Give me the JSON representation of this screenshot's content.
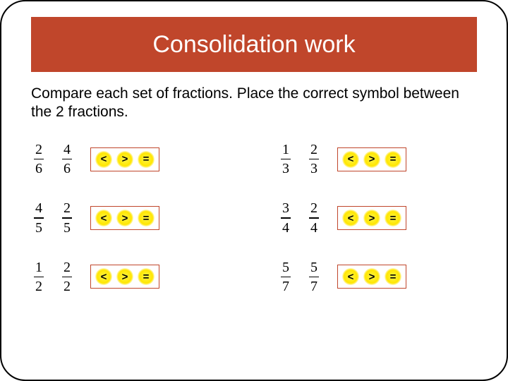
{
  "title": "Consolidation work",
  "instruction": "Compare each set of fractions. Place the correct symbol between the 2 fractions.",
  "colors": {
    "title_bg": "#c0462b",
    "title_text": "#ffffff",
    "border": "#000000",
    "symbox_border": "#c0462b",
    "symbol_glow": "#ffe600"
  },
  "symbols": {
    "lt": "<",
    "gt": ">",
    "eq": "="
  },
  "rows": [
    {
      "f1": {
        "n": "2",
        "d": "6"
      },
      "f2": {
        "n": "4",
        "d": "6"
      }
    },
    {
      "f1": {
        "n": "1",
        "d": "3"
      },
      "f2": {
        "n": "2",
        "d": "3"
      }
    },
    {
      "f1": {
        "n": "4",
        "d": "5"
      },
      "f2": {
        "n": "2",
        "d": "5"
      }
    },
    {
      "f1": {
        "n": "3",
        "d": "4"
      },
      "f2": {
        "n": "2",
        "d": "4"
      }
    },
    {
      "f1": {
        "n": "1",
        "d": "2"
      },
      "f2": {
        "n": "2",
        "d": "2"
      }
    },
    {
      "f1": {
        "n": "5",
        "d": "7"
      },
      "f2": {
        "n": "5",
        "d": "7"
      }
    }
  ],
  "layout": {
    "slide_width": 720,
    "slide_height": 540,
    "slide_radius": 36,
    "grid_cols": 2,
    "title_fontsize": 34,
    "instruction_fontsize": 21,
    "fraction_fontsize": 20,
    "symbol_fontsize": 15
  }
}
